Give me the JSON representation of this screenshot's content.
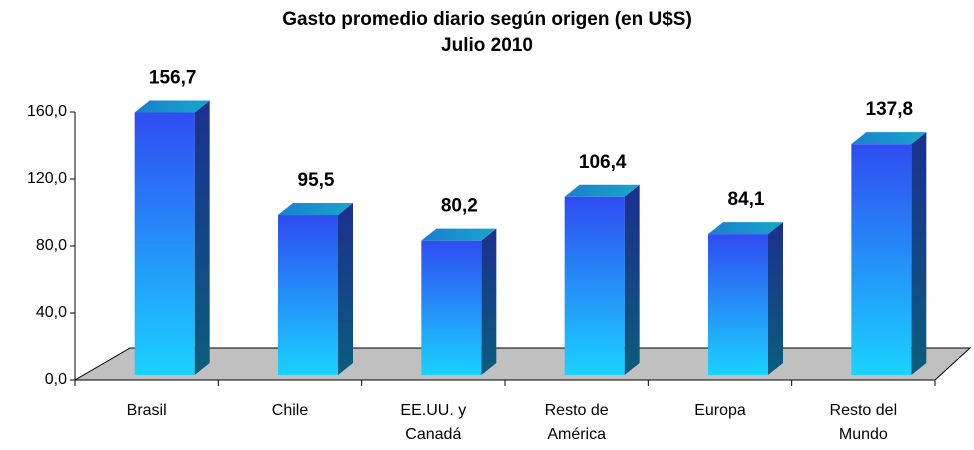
{
  "chart_data": {
    "type": "bar3d",
    "title": "Gasto promedio diario según origen (en U$S)",
    "subtitle": "Julio 2010",
    "categories": [
      "Brasil",
      "Chile",
      "EE.UU. y Canadá",
      "Resto de América",
      "Europa",
      "Resto del Mundo"
    ],
    "values": [
      156.7,
      95.5,
      80.2,
      106.4,
      84.1,
      137.8
    ],
    "value_labels": [
      "156,7",
      "95,5",
      "80,2",
      "106,4",
      "84,1",
      "137,8"
    ],
    "ylim": [
      0,
      160
    ],
    "yticks": [
      {
        "value": 0,
        "label": "0,0"
      },
      {
        "value": 40,
        "label": "40,0"
      },
      {
        "value": 80,
        "label": "80,0"
      },
      {
        "value": 120,
        "label": "120,0"
      },
      {
        "value": 160,
        "label": "160,0"
      }
    ]
  }
}
